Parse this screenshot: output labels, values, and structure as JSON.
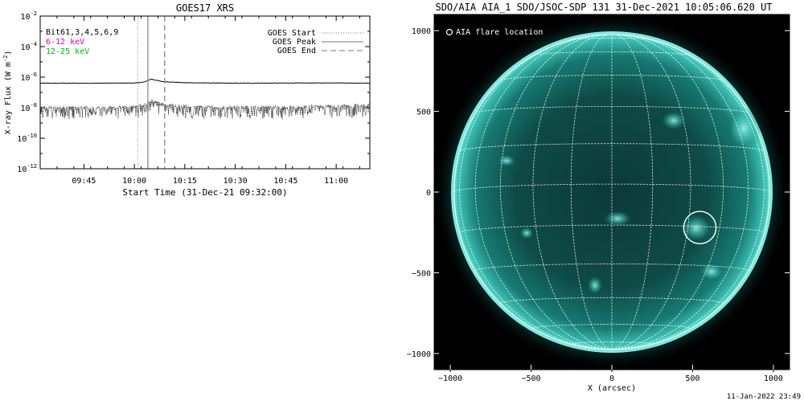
{
  "chart_data": [
    {
      "type": "line",
      "title": "GOES17 XRS",
      "xlabel": "Start Time (31-Dec-21 09:32:00)",
      "ylabel": "X-ray Flux (W m",
      "ylabel_sup": "-2",
      "ylabel_close": ")",
      "yscale": "log",
      "ylim": [
        1e-12,
        0.01
      ],
      "xlim": [
        "09:32",
        "11:10"
      ],
      "x_ticks": [
        "09:45",
        "10:00",
        "10:15",
        "10:30",
        "10:45",
        "11:00"
      ],
      "y_ticks": [
        {
          "base": "10",
          "exp": "-2"
        },
        {
          "base": "10",
          "exp": "-4"
        },
        {
          "base": "10",
          "exp": "-6"
        },
        {
          "base": "10",
          "exp": "-8"
        },
        {
          "base": "10",
          "exp": "-10"
        },
        {
          "base": "10",
          "exp": "-12"
        }
      ],
      "bands": [
        {
          "label": "Bit61,3,4,5,6,9",
          "color": "#000000"
        },
        {
          "label": "6-12 keV",
          "color": "#cc00cc"
        },
        {
          "label": "12-25 keV",
          "color": "#00bb00"
        }
      ],
      "markers_legend": [
        {
          "label": "GOES Start",
          "style": "dotted"
        },
        {
          "label": "GOES Peak",
          "style": "solid"
        },
        {
          "label": "GOES End",
          "style": "dashed"
        }
      ],
      "markers": {
        "start": "10:01",
        "peak": "10:04",
        "end": "10:09"
      },
      "series": [
        {
          "x": [
            "09:32",
            "09:45",
            "10:00",
            "10:03",
            "10:05",
            "10:08",
            "10:15",
            "10:30",
            "10:45",
            "11:00",
            "11:10"
          ],
          "y": [
            4e-07,
            4e-07,
            4.1e-07,
            4.8e-07,
            7.5e-07,
            5.2e-07,
            4.3e-07,
            4e-07,
            4.1e-07,
            4.2e-07,
            4e-07
          ]
        },
        {
          "x": [
            "09:32",
            "09:45",
            "10:00",
            "10:03",
            "10:05",
            "10:08",
            "10:15",
            "10:30",
            "10:45",
            "11:00",
            "11:10"
          ],
          "y": [
            1e-08,
            1e-08,
            1.1e-08,
            1.6e-08,
            2.8e-08,
            1.8e-08,
            1.2e-08,
            1.1e-08,
            1.1e-08,
            1.3e-08,
            1.5e-08
          ]
        }
      ]
    },
    {
      "type": "heatmap",
      "title": "SDO/AIA AIA_1 SDO/JSOC-SDP 131 31-Dec-2021 10:05:06.620 UT",
      "xlabel": "X (arcsec)",
      "ylabel": "",
      "xlim": [
        -1100,
        1100
      ],
      "ylim": [
        -1100,
        1100
      ],
      "x_ticks": [
        -1000,
        -500,
        0,
        500,
        1000
      ],
      "y_ticks": [
        1000,
        500,
        0,
        -500,
        -1000
      ],
      "legend_label": "AIA flare location",
      "solar_radius": 976,
      "flare_location": {
        "x": 545,
        "y": -220,
        "r": 100
      },
      "colormap": "teal",
      "grid": true
    }
  ],
  "footer": {
    "timestamp": "11-Jan-2022 23:49"
  }
}
